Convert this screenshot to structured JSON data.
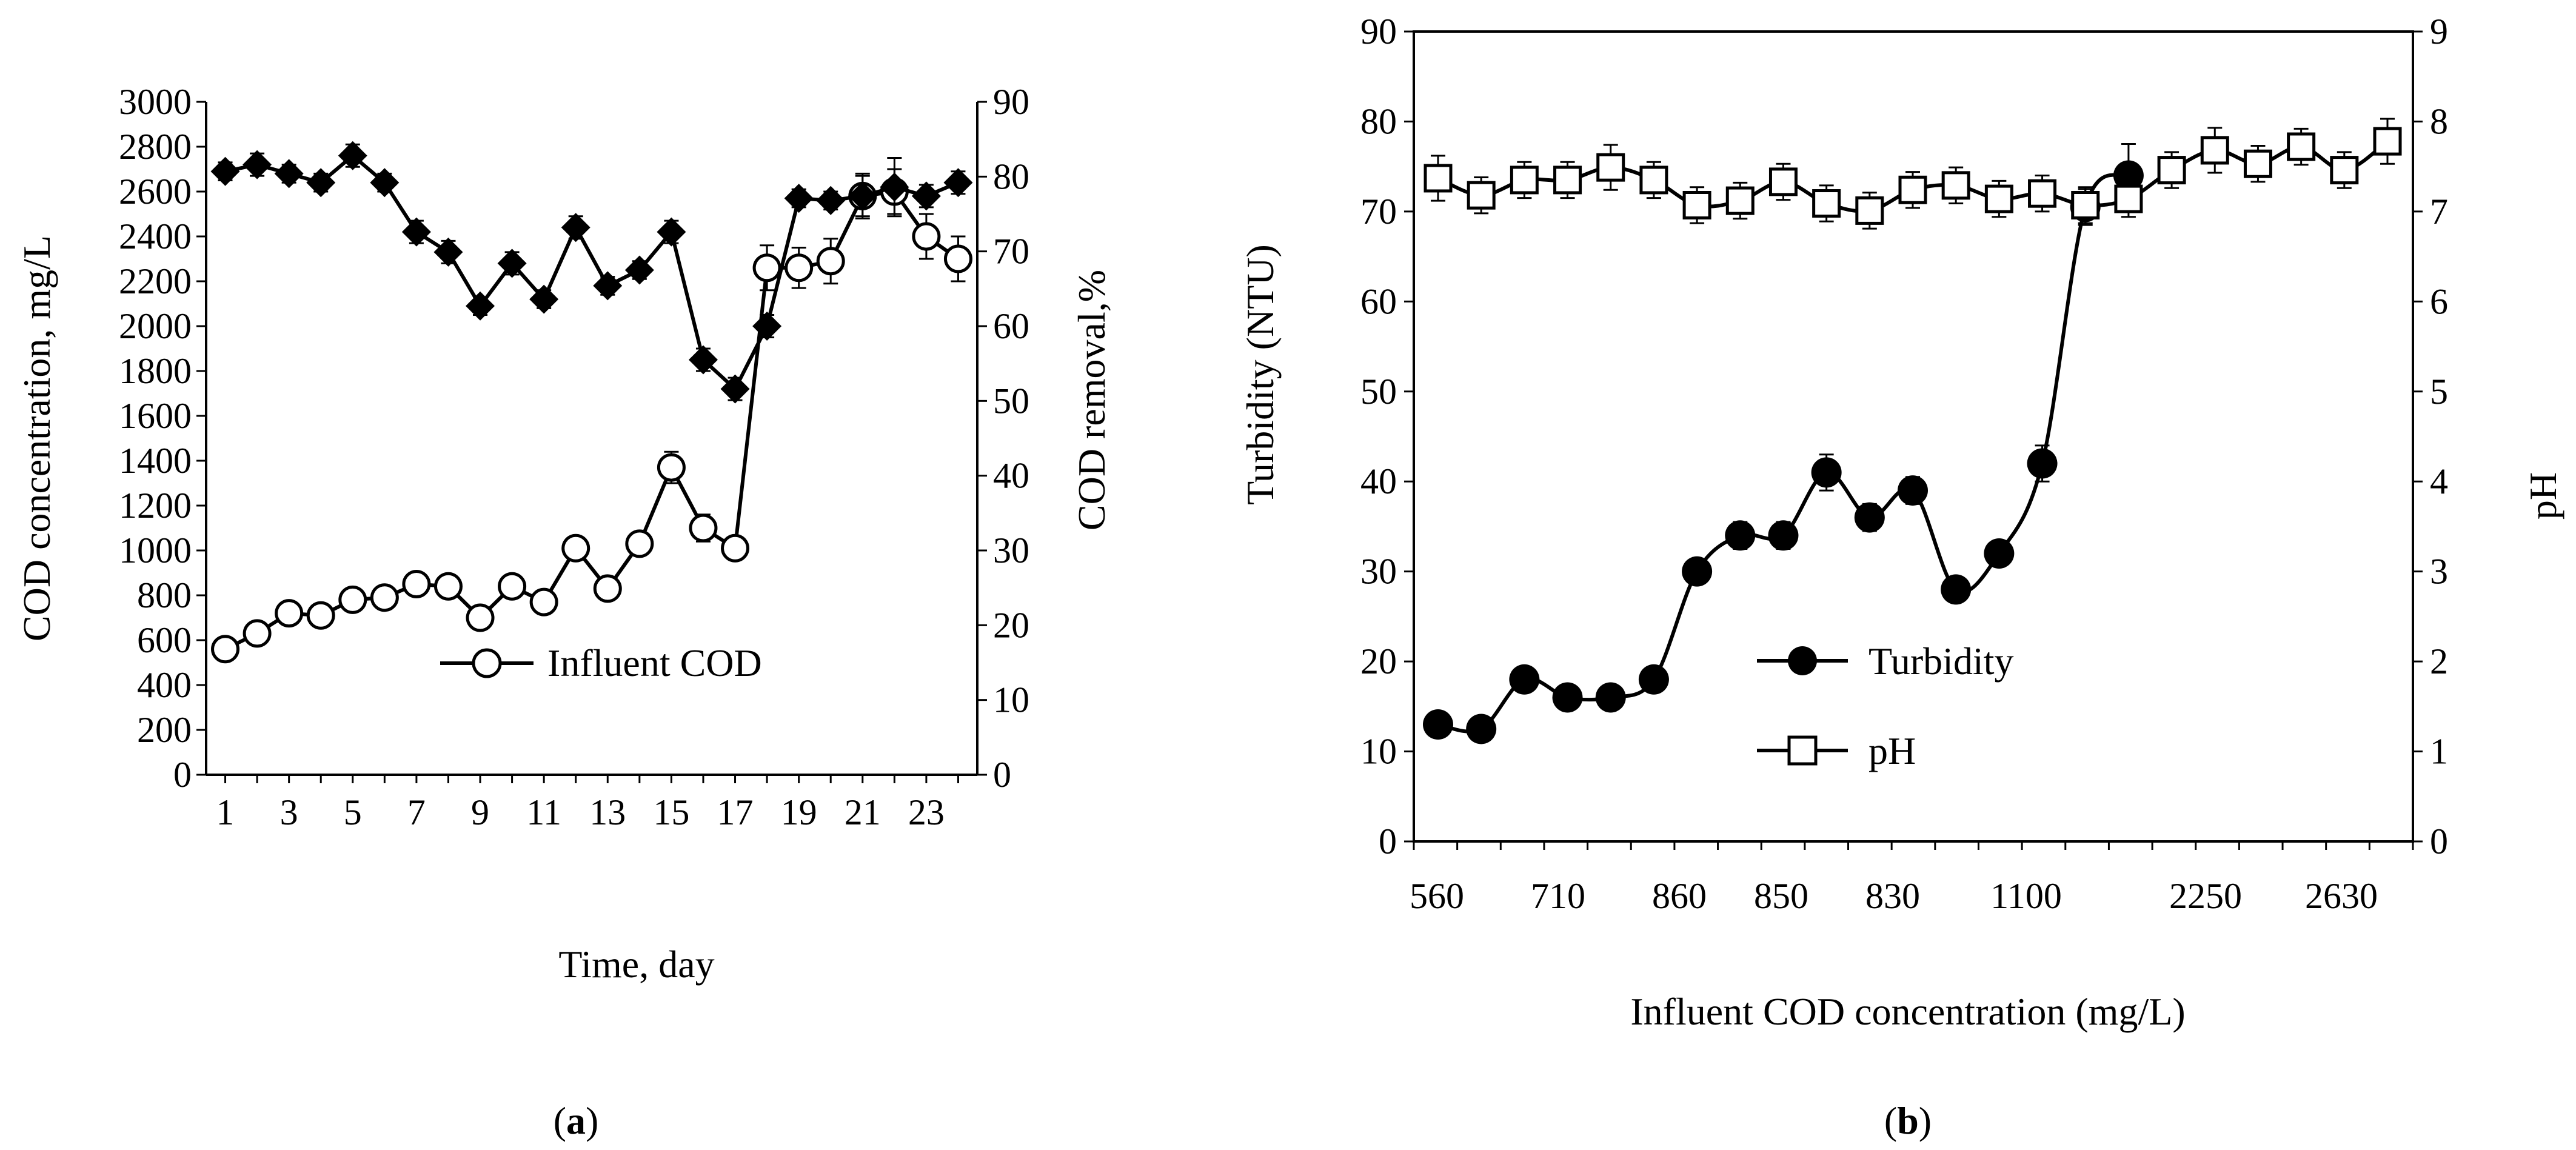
{
  "chart_data": [
    {
      "type": "line",
      "panel_label": "(a)",
      "panel_letter": "a",
      "xlabel": "Time, day",
      "ylabel": "COD concentration, mg/L",
      "y2label": "COD removal,%",
      "xlim": [
        0.4,
        24.6
      ],
      "ylim": [
        0,
        3000
      ],
      "y2lim": [
        0,
        90
      ],
      "x_ticks": [
        1,
        3,
        5,
        7,
        9,
        11,
        13,
        15,
        17,
        19,
        21,
        23
      ],
      "y_ticks": [
        0,
        200,
        400,
        600,
        800,
        1000,
        1200,
        1400,
        1600,
        1800,
        2000,
        2200,
        2400,
        2600,
        2800,
        3000
      ],
      "y2_ticks": [
        0,
        10,
        20,
        30,
        40,
        50,
        60,
        70,
        80,
        90
      ],
      "legend_position": "center-right",
      "legend": [
        "Influent COD"
      ],
      "series": [
        {
          "name": "Influent COD",
          "axis": "left",
          "marker": "open-circle",
          "x": [
            1,
            2,
            3,
            4,
            5,
            6,
            7,
            8,
            9,
            10,
            11,
            12,
            13,
            14,
            15,
            16,
            17,
            18,
            19,
            20,
            21,
            22,
            23,
            24
          ],
          "values": [
            560,
            630,
            720,
            710,
            780,
            790,
            850,
            840,
            700,
            840,
            770,
            1010,
            830,
            1030,
            1370,
            1100,
            1010,
            2260,
            2260,
            2290,
            2580,
            2600,
            2400,
            2300
          ],
          "errors": [
            0,
            0,
            0,
            0,
            0,
            0,
            0,
            0,
            0,
            0,
            0,
            0,
            0,
            0,
            70,
            60,
            0,
            100,
            90,
            100,
            90,
            100,
            100,
            100
          ]
        },
        {
          "name": "COD removal",
          "axis": "right",
          "marker": "filled-diamond",
          "x": [
            1,
            2,
            3,
            4,
            5,
            6,
            7,
            8,
            9,
            10,
            11,
            12,
            13,
            14,
            15,
            16,
            17,
            18,
            19,
            20,
            21,
            22,
            23,
            24
          ],
          "values": [
            80.7,
            81.6,
            80.4,
            79.2,
            82.8,
            79.2,
            72.6,
            69.9,
            62.7,
            68.4,
            63.6,
            73.2,
            65.4,
            67.5,
            72.6,
            55.5,
            51.6,
            60.0,
            77.1,
            76.8,
            77.4,
            78.6,
            77.4,
            79.2
          ],
          "errors": [
            1.2,
            1.5,
            1.2,
            1.2,
            1.5,
            1.2,
            1.5,
            1.5,
            1.2,
            1.5,
            1.2,
            1.5,
            1.2,
            1.2,
            1.5,
            1.5,
            1.5,
            1.5,
            1.2,
            1.2,
            3.0,
            3.9,
            1.5,
            1.5
          ]
        }
      ]
    },
    {
      "type": "line",
      "panel_label": "(b)",
      "panel_letter": "b",
      "xlabel": "Influent COD concentration (mg/L)",
      "ylabel": "Turbidity (NTU)",
      "y2label": "pH",
      "ylim": [
        0,
        90
      ],
      "y2lim": [
        0,
        9
      ],
      "x_ticks": [
        "560",
        "710",
        "860",
        "850",
        "830",
        "1100",
        "2250",
        "2630"
      ],
      "y_ticks": [
        0,
        10,
        20,
        30,
        40,
        50,
        60,
        70,
        80,
        90
      ],
      "y2_ticks": [
        0,
        1,
        2,
        3,
        4,
        5,
        6,
        7,
        8,
        9
      ],
      "legend_position": "center",
      "legend": [
        "Turbidity",
        "pH"
      ],
      "series": [
        {
          "name": "Turbidity",
          "axis": "left",
          "marker": "filled-circle",
          "x": [
            1,
            2,
            3,
            4,
            5,
            6,
            7,
            8,
            9,
            10,
            11,
            12,
            13,
            14,
            15,
            16,
            17
          ],
          "values": [
            13,
            12.5,
            18,
            16,
            16,
            18,
            30,
            34,
            34,
            41,
            36,
            39,
            28,
            32,
            42,
            70.5,
            74
          ],
          "errors": [
            0,
            0,
            0,
            0,
            0,
            0,
            0,
            1.5,
            1.5,
            2,
            1.5,
            1.5,
            0,
            0,
            2,
            2,
            3.5
          ]
        },
        {
          "name": "pH",
          "axis": "right",
          "marker": "open-square",
          "x": [
            1,
            2,
            3,
            4,
            5,
            6,
            7,
            8,
            9,
            10,
            11,
            12,
            13,
            14,
            15,
            16,
            17,
            18,
            19,
            20,
            21,
            22,
            23
          ],
          "values": [
            7.37,
            7.18,
            7.35,
            7.35,
            7.49,
            7.35,
            7.07,
            7.12,
            7.33,
            7.09,
            7.01,
            7.24,
            7.29,
            7.14,
            7.2,
            7.07,
            7.14,
            7.46,
            7.68,
            7.53,
            7.72,
            7.46,
            7.78
          ],
          "errors": [
            0.25,
            0.2,
            0.2,
            0.2,
            0.25,
            0.2,
            0.2,
            0.2,
            0.2,
            0.2,
            0.2,
            0.2,
            0.2,
            0.2,
            0.2,
            0.2,
            0.2,
            0.2,
            0.25,
            0.2,
            0.2,
            0.2,
            0.25
          ]
        }
      ]
    }
  ]
}
